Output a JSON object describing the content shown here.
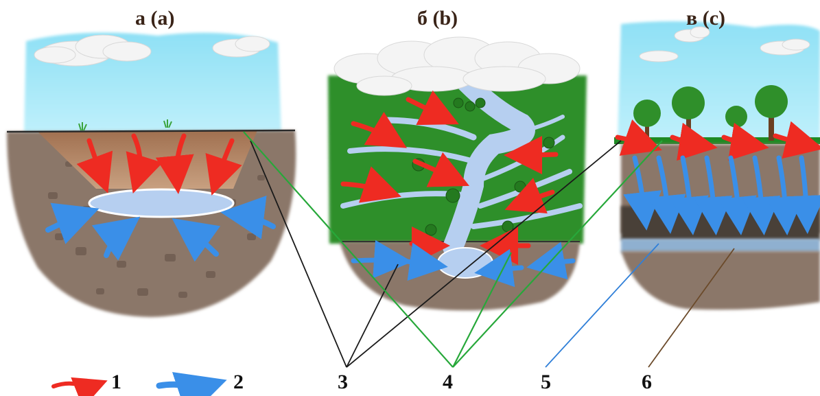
{
  "panels": [
    {
      "label": "а (a)"
    },
    {
      "label": "б (b)"
    },
    {
      "label": "в (c)"
    }
  ],
  "legend": [
    "1",
    "2",
    "3",
    "4",
    "5",
    "6"
  ],
  "colors": {
    "sky": "#a8e7f6",
    "grass": "#2e8f2a",
    "soil": "#8b7769",
    "water": "#b6cff0",
    "surface_flow": "#ee2b22",
    "groundwater_flow": "#3a8fe8",
    "leader_black": "#1a1a1a",
    "leader_green": "#27a83a",
    "leader_blue": "#2f7fd8",
    "leader_brown": "#6b4a2a"
  }
}
